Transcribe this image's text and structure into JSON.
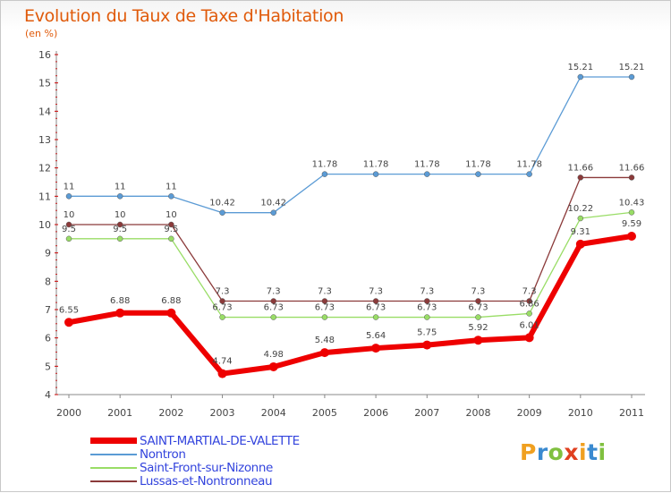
{
  "header": {
    "title": "Evolution du Taux de Taxe d'Habitation",
    "subtitle": "(en %)"
  },
  "logo": {
    "letters": [
      "P",
      "r",
      "o",
      "x",
      "i",
      "t",
      "i"
    ],
    "colors": [
      "#f0a020",
      "#3a8ad0",
      "#80c040",
      "#e04020",
      "#f0a020",
      "#3a8ad0",
      "#80c040"
    ]
  },
  "chart_data": {
    "type": "line",
    "title": "Evolution du Taux de Taxe d'Habitation",
    "ylabel": "(en %)",
    "ylim": [
      4,
      16
    ],
    "yticks": [
      "4",
      "5",
      "6",
      "7",
      "8",
      "9",
      "10",
      "11",
      "12",
      "13",
      "14",
      "15",
      "16"
    ],
    "categories": [
      "2000",
      "2001",
      "2002",
      "2003",
      "2004",
      "2005",
      "2006",
      "2007",
      "2008",
      "2009",
      "2010",
      "2011"
    ],
    "legend_position": "bottom-left",
    "series": [
      {
        "name": "SAINT-MARTIAL-DE-VALETTE",
        "color": "#ee0000",
        "labelColor": "#444444",
        "width": 6,
        "marker": 5,
        "values": [
          6.55,
          6.88,
          6.88,
          4.74,
          4.98,
          5.48,
          5.64,
          5.75,
          5.92,
          6.01,
          9.31,
          9.59
        ],
        "labels": [
          "6.55",
          "6.88",
          "6.88",
          "4.74",
          "4.98",
          "5.48",
          "5.64",
          "5.75",
          "5.92",
          "6.01",
          "9.31",
          "9.59"
        ]
      },
      {
        "name": "Nontron",
        "color": "#5b9bd5",
        "labelColor": "#444444",
        "width": 1.3,
        "marker": 3,
        "values": [
          11,
          11,
          11,
          10.42,
          10.42,
          11.78,
          11.78,
          11.78,
          11.78,
          11.78,
          15.21,
          15.21
        ],
        "labels": [
          "11",
          "11",
          "11",
          "10.42",
          "10.42",
          "11.78",
          "11.78",
          "11.78",
          "11.78",
          "11.78",
          "15.21",
          "15.21"
        ]
      },
      {
        "name": "Saint-Front-sur-Nizonne",
        "color": "#99dd66",
        "labelColor": "#444444",
        "width": 1.3,
        "marker": 3,
        "values": [
          9.5,
          9.5,
          9.5,
          6.73,
          6.73,
          6.73,
          6.73,
          6.73,
          6.73,
          6.86,
          10.22,
          10.43
        ],
        "labels": [
          "9.5",
          "9.5",
          "9.5",
          "6.73",
          "6.73",
          "6.73",
          "6.73",
          "6.73",
          "6.73",
          "6.86",
          "10.22",
          "10.43"
        ]
      },
      {
        "name": "Lussas-et-Nontronneau",
        "color": "#8b3a3a",
        "labelColor": "#444444",
        "width": 1.3,
        "marker": 3,
        "values": [
          10,
          10,
          10,
          7.3,
          7.3,
          7.3,
          7.3,
          7.3,
          7.3,
          7.3,
          11.66,
          11.66
        ],
        "labels": [
          "10",
          "10",
          "10",
          "7.3",
          "7.3",
          "7.3",
          "7.3",
          "7.3",
          "7.3",
          "7.3",
          "11.66",
          "11.66"
        ]
      }
    ]
  }
}
